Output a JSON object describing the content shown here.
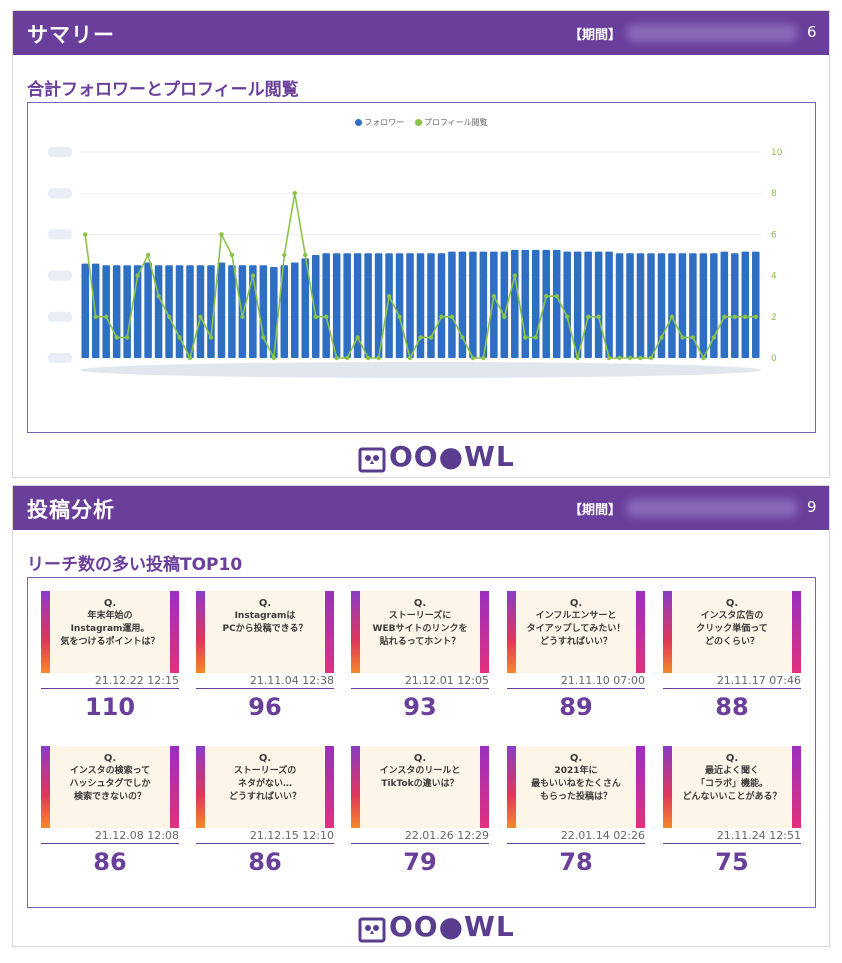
{
  "summary": {
    "header_title": "サマリー",
    "period_label": "【期間】",
    "page_number": "6",
    "section_title": "合計フォロワーとプロフィール閲覧"
  },
  "chart_data": {
    "type": "bar",
    "title": "合計フォロワーとプロフィール閲覧",
    "legend_position": "top-center",
    "grid": true,
    "series": [
      {
        "name": "フォロワー",
        "kind": "bar",
        "axis": "left",
        "color": "#2f6fc3",
        "values": [
          275,
          275,
          270,
          270,
          270,
          270,
          278,
          270,
          270,
          270,
          270,
          270,
          270,
          278,
          270,
          270,
          270,
          270,
          265,
          270,
          278,
          290,
          300,
          305,
          305,
          305,
          305,
          305,
          305,
          305,
          305,
          305,
          305,
          305,
          305,
          310,
          310,
          310,
          310,
          310,
          310,
          315,
          315,
          315,
          315,
          315,
          310,
          310,
          310,
          310,
          310,
          305,
          305,
          305,
          305,
          305,
          305,
          305,
          305,
          305,
          305,
          310,
          305,
          310,
          310
        ]
      },
      {
        "name": "プロフィール閲覧",
        "kind": "line",
        "axis": "right",
        "color": "#8bc34a",
        "values": [
          6,
          2,
          2,
          1,
          1,
          4,
          5,
          3,
          2,
          1,
          0,
          2,
          1,
          6,
          5,
          2,
          4,
          1,
          0,
          5,
          8,
          5,
          2,
          2,
          0,
          0,
          1,
          0,
          0,
          3,
          2,
          0,
          1,
          1,
          2,
          2,
          1,
          0,
          0,
          3,
          2,
          4,
          1,
          1,
          3,
          3,
          2,
          0,
          2,
          2,
          0,
          0,
          0,
          0,
          0,
          1,
          2,
          1,
          1,
          0,
          1,
          2,
          2,
          2,
          2
        ]
      }
    ],
    "left_axis": {
      "ylim": [
        0,
        600
      ],
      "tick_labels_visible": false
    },
    "right_axis": {
      "ylim": [
        0,
        10
      ],
      "ticks": [
        0,
        2,
        4,
        6,
        8,
        10
      ],
      "color": "#8bc34a"
    }
  },
  "posts": {
    "header_title": "投稿分析",
    "period_label": "【期間】",
    "page_number": "9",
    "section_title": "リーチ数の多い投稿TOP10",
    "items": [
      {
        "q": "Q.",
        "text": "年末年始の\nInstagram運用。\n気をつけるポイントは？",
        "date": "21.12.22 12:15",
        "reach": "110"
      },
      {
        "q": "Q.",
        "text": "Instagramは\nPCから投稿できる？",
        "date": "21.11.04 12:38",
        "reach": "96"
      },
      {
        "q": "Q.",
        "text": "ストーリーズに\nWEBサイトのリンクを\n貼れるってホント？",
        "date": "21.12.01 12:05",
        "reach": "93"
      },
      {
        "q": "Q.",
        "text": "インフルエンサーと\nタイアップしてみたい！\nどうすればいい？",
        "date": "21.11.10 07:00",
        "reach": "89"
      },
      {
        "q": "Q.",
        "text": "インスタ広告の\nクリック単価って\nどのくらい？",
        "date": "21.11.17 07:46",
        "reach": "88"
      },
      {
        "q": "Q.",
        "text": "インスタの検索って\nハッシュタグでしか\n検索できないの？",
        "date": "21.12.08 12:08",
        "reach": "86"
      },
      {
        "q": "Q.",
        "text": "ストーリーズの\nネタがない…\nどうすればいい？",
        "date": "21.12.15 12:10",
        "reach": "86"
      },
      {
        "q": "Q.",
        "text": "インスタのリールと\nTikTokの違いは？",
        "date": "22.01.26 12:29",
        "reach": "79"
      },
      {
        "q": "Q.",
        "text": "2021年に\n最もいいねをたくさん\nもらった投稿は？",
        "date": "22.01.14 02:26",
        "reach": "78"
      },
      {
        "q": "Q.",
        "text": "最近よく聞く\n「コラボ」機能。\nどんないいことがある？",
        "date": "21.11.24 12:51",
        "reach": "75"
      }
    ]
  },
  "logo": {
    "text": "OOOWL",
    "icon": "owl-logo-icon"
  }
}
